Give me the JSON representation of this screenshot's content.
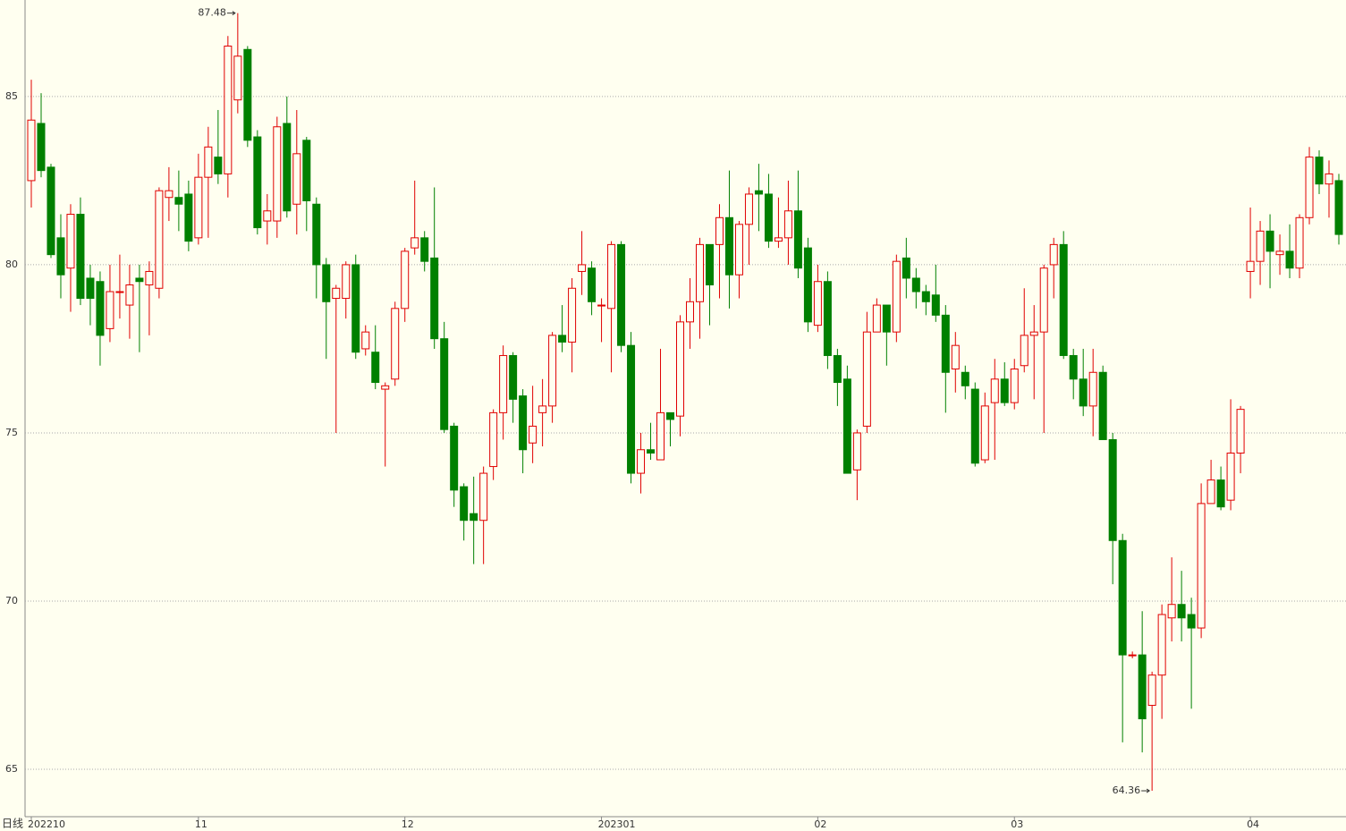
{
  "chart_data": {
    "type": "candlestick",
    "period_label": "日线",
    "categories": [
      "202210",
      null,
      null,
      null,
      null,
      null,
      null,
      null,
      null,
      null,
      null,
      null,
      null,
      null,
      null,
      null,
      null,
      "11",
      null,
      null,
      null,
      null,
      null,
      null,
      null,
      null,
      null,
      null,
      null,
      null,
      null,
      null,
      null,
      null,
      null,
      null,
      null,
      null,
      "12",
      null,
      null,
      null,
      null,
      null,
      null,
      null,
      null,
      null,
      null,
      null,
      null,
      null,
      null,
      null,
      null,
      null,
      null,
      null,
      "202301",
      null,
      null,
      null,
      null,
      null,
      null,
      null,
      null,
      null,
      null,
      null,
      null,
      null,
      null,
      null,
      null,
      null,
      null,
      null,
      null,
      null,
      "02",
      null,
      null,
      null,
      null,
      null,
      null,
      null,
      null,
      null,
      null,
      null,
      null,
      null,
      null,
      null,
      null,
      null,
      null,
      null,
      "03",
      null,
      null,
      null,
      null,
      null,
      null,
      null,
      null,
      null,
      null,
      null,
      null,
      null,
      null,
      null,
      null,
      null,
      null,
      null,
      null,
      null,
      null,
      null,
      "04",
      null,
      null,
      null,
      null,
      null,
      null,
      null,
      null,
      null
    ],
    "open": [
      82.5,
      84.2,
      82.9,
      80.8,
      79.9,
      81.5,
      79.6,
      79.5,
      78.1,
      79.2,
      78.8,
      79.6,
      79.4,
      79.3,
      82.0,
      82.0,
      82.1,
      80.8,
      82.6,
      83.2,
      82.7,
      84.9,
      86.4,
      83.8,
      81.3,
      81.3,
      84.2,
      81.8,
      83.7,
      81.8,
      80.0,
      79.0,
      79.0,
      80.0,
      77.5,
      77.4,
      76.3,
      76.6,
      78.7,
      80.5,
      80.8,
      80.2,
      77.8,
      75.2,
      73.4,
      72.6,
      72.4,
      74.0,
      75.6,
      77.3,
      76.1,
      74.7,
      75.6,
      75.8,
      77.9,
      77.7,
      79.8,
      79.9,
      78.8,
      78.7,
      80.6,
      77.6,
      73.8,
      74.5,
      74.2,
      75.6,
      75.5,
      78.3,
      78.9,
      80.6,
      80.6,
      81.4,
      79.7,
      81.2,
      82.2,
      82.1,
      80.7,
      80.8,
      81.6,
      80.5,
      78.2,
      79.5,
      77.3,
      76.6,
      73.9,
      75.2,
      78.0,
      78.8,
      78.0,
      80.2,
      79.6,
      79.2,
      79.1,
      78.5,
      76.9,
      76.8,
      76.3,
      74.2,
      75.9,
      76.6,
      75.9,
      77.0,
      77.9,
      78.0,
      80.0,
      80.6,
      77.3,
      76.6,
      75.8,
      76.8,
      74.8,
      71.8,
      68.4,
      68.4,
      66.9,
      67.8,
      69.5,
      69.9,
      69.6,
      69.2,
      72.9,
      73.6,
      73.0,
      74.4,
      79.8,
      80.1,
      81.0,
      80.3,
      80.4,
      79.9,
      81.4,
      83.2,
      82.4,
      82.5
    ],
    "high": [
      85.5,
      85.1,
      83.0,
      81.5,
      81.8,
      82.0,
      80.0,
      79.8,
      80.0,
      80.3,
      80.0,
      80.0,
      80.1,
      82.3,
      82.9,
      82.8,
      82.5,
      83.3,
      84.1,
      84.6,
      86.8,
      87.48,
      86.5,
      84.0,
      82.1,
      84.4,
      85.0,
      84.6,
      83.8,
      82.0,
      80.2,
      79.4,
      80.1,
      80.3,
      78.2,
      78.2,
      76.5,
      78.9,
      80.5,
      82.5,
      81.0,
      82.3,
      78.3,
      75.3,
      73.5,
      73.7,
      74.0,
      75.7,
      77.6,
      77.4,
      76.3,
      76.4,
      76.6,
      78.0,
      78.8,
      79.6,
      81.0,
      80.1,
      79.0,
      80.7,
      80.7,
      78.0,
      75.0,
      75.3,
      77.5,
      75.6,
      78.5,
      79.6,
      80.8,
      80.6,
      81.8,
      82.8,
      81.3,
      82.3,
      83.0,
      82.7,
      82.0,
      82.5,
      82.8,
      80.8,
      80.0,
      79.8,
      77.5,
      77.0,
      75.1,
      78.6,
      79.0,
      78.8,
      80.3,
      80.8,
      79.9,
      79.4,
      80.0,
      78.8,
      78.0,
      77.0,
      76.5,
      76.2,
      77.2,
      77.1,
      77.2,
      79.3,
      78.8,
      80.0,
      80.8,
      81.0,
      77.5,
      77.5,
      77.5,
      77.0,
      75.0,
      72.0,
      68.5,
      69.7,
      67.9,
      69.9,
      71.3,
      70.9,
      70.1,
      73.5,
      74.2,
      74.0,
      76.0,
      75.8,
      81.7,
      81.3,
      81.5,
      80.9,
      81.2,
      81.5,
      83.5,
      83.4,
      83.1,
      82.7
    ],
    "low": [
      81.7,
      82.6,
      80.2,
      79.0,
      78.6,
      78.8,
      78.2,
      77.0,
      77.7,
      78.4,
      77.8,
      77.4,
      77.9,
      79.0,
      81.3,
      81.0,
      80.4,
      80.6,
      80.8,
      82.4,
      82.0,
      84.5,
      83.5,
      80.9,
      80.6,
      80.8,
      81.4,
      80.9,
      81.0,
      79.0,
      77.2,
      75.0,
      78.4,
      77.2,
      77.3,
      76.3,
      74.0,
      76.4,
      78.3,
      80.3,
      79.8,
      77.5,
      75.0,
      72.8,
      71.8,
      71.1,
      71.1,
      73.6,
      74.8,
      75.3,
      73.8,
      74.1,
      74.6,
      75.3,
      77.4,
      76.8,
      79.1,
      78.5,
      77.7,
      76.8,
      77.4,
      73.5,
      73.2,
      74.2,
      74.2,
      74.6,
      74.9,
      77.5,
      77.8,
      78.2,
      79.0,
      78.7,
      79.0,
      80.0,
      81.0,
      80.5,
      80.5,
      80.0,
      79.6,
      78.0,
      78.0,
      76.9,
      75.8,
      73.8,
      73.0,
      75.0,
      78.0,
      77.0,
      77.7,
      79.0,
      78.7,
      78.5,
      78.3,
      75.6,
      76.2,
      76.0,
      74.0,
      74.1,
      74.2,
      75.8,
      75.7,
      76.8,
      76.0,
      75.0,
      79.0,
      77.2,
      76.0,
      75.5,
      74.9,
      74.8,
      70.5,
      65.8,
      68.3,
      65.5,
      64.36,
      66.5,
      68.8,
      68.8,
      66.8,
      68.9,
      72.9,
      72.7,
      72.7,
      73.8,
      79.0,
      79.4,
      79.3,
      79.7,
      79.6,
      79.6,
      81.2,
      82.1,
      81.4,
      80.6
    ],
    "close": [
      84.3,
      82.8,
      80.3,
      79.7,
      81.5,
      79.0,
      79.0,
      77.9,
      79.2,
      79.2,
      79.4,
      79.5,
      79.8,
      82.2,
      82.2,
      81.8,
      80.7,
      82.6,
      83.5,
      82.7,
      86.5,
      86.2,
      83.7,
      81.1,
      81.6,
      84.1,
      81.6,
      83.3,
      81.9,
      80.0,
      78.9,
      79.3,
      80.0,
      77.4,
      78.0,
      76.5,
      76.4,
      78.7,
      80.4,
      80.8,
      80.1,
      77.8,
      75.1,
      73.3,
      72.4,
      72.4,
      73.8,
      75.6,
      77.3,
      76.0,
      74.5,
      75.2,
      75.8,
      77.9,
      77.7,
      79.3,
      80.0,
      78.9,
      78.8,
      80.6,
      77.6,
      73.8,
      74.5,
      74.4,
      75.6,
      75.4,
      78.3,
      78.9,
      80.6,
      79.4,
      81.4,
      79.7,
      81.2,
      82.1,
      82.1,
      80.7,
      80.8,
      81.6,
      79.9,
      78.3,
      79.5,
      77.3,
      76.5,
      73.8,
      75.0,
      78.0,
      78.8,
      78.0,
      80.1,
      79.6,
      79.2,
      78.9,
      78.5,
      76.8,
      77.6,
      76.4,
      74.1,
      75.8,
      76.6,
      75.9,
      76.9,
      77.9,
      78.0,
      79.9,
      80.6,
      77.3,
      76.6,
      75.8,
      76.8,
      74.8,
      71.8,
      68.4,
      68.4,
      66.5,
      67.8,
      69.6,
      69.9,
      69.5,
      69.2,
      72.9,
      73.6,
      72.8,
      74.4,
      75.7,
      80.1,
      81.0,
      80.4,
      80.4,
      79.9,
      81.4,
      83.2,
      82.4,
      82.7,
      80.9
    ],
    "up_color": "#e00000",
    "down_color": "#008000",
    "ylim": [
      63.59,
      87.87
    ],
    "yticks": [
      65,
      70,
      75,
      80,
      85
    ],
    "grid": true
  }
}
